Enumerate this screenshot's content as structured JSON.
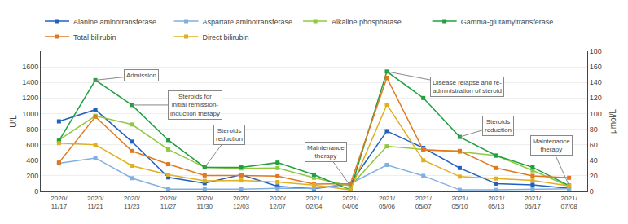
{
  "chart_data": {
    "type": "line",
    "categories": [
      "2020/\n11/17",
      "2020/\n11/21",
      "2020/\n11/23",
      "2020/\n11/27",
      "2020/\n11/30",
      "2020/\n12/03",
      "2020/\n12/07",
      "2021/\n02/04",
      "2021/\n04/06",
      "2021/\n05/06",
      "2021/\n05/07",
      "2021/\n05/10",
      "2021/\n05/13",
      "2021/\n05/17",
      "2021/\n07/08"
    ],
    "series": [
      {
        "name": "Alanine aminotransferase",
        "color": "#2060c0",
        "values": [
          900,
          1050,
          640,
          180,
          105,
          215,
          65,
          35,
          100,
          775,
          560,
          300,
          100,
          85,
          40
        ]
      },
      {
        "name": "Aspartate aminotransferase",
        "color": "#80b0e0",
        "values": [
          360,
          430,
          170,
          30,
          30,
          30,
          40,
          40,
          100,
          340,
          200,
          20,
          20,
          30,
          35
        ]
      },
      {
        "name": "Alkaline phosphatase",
        "color": "#90c840",
        "values": [
          660,
          970,
          860,
          540,
          310,
          295,
          300,
          175,
          70,
          580,
          540,
          510,
          460,
          270,
          65
        ]
      },
      {
        "name": "Gamma-glutamyltransferase",
        "color": "#20a040",
        "values": [
          650,
          1430,
          1110,
          660,
          310,
          310,
          370,
          215,
          20,
          1540,
          1200,
          700,
          460,
          310,
          75
        ]
      },
      {
        "name": "Total bilirubin",
        "color": "#e07820",
        "axis": "y2",
        "values": [
          37,
          96,
          52,
          35,
          20.5,
          20.5,
          19.5,
          9.5,
          10,
          146,
          53,
          52,
          30,
          20,
          17.5
        ]
      },
      {
        "name": "Direct bilirubin",
        "color": "#e0b020",
        "axis": "y2",
        "values": [
          62,
          60,
          33,
          21.5,
          13.5,
          14,
          12,
          8,
          2,
          111.5,
          40,
          19,
          16.5,
          14,
          7
        ]
      }
    ],
    "ylabel": "U/L",
    "y2label": "μmol/L",
    "ylim": [
      0,
      1800
    ],
    "yticks": [
      0,
      200,
      400,
      600,
      800,
      1000,
      1200,
      1400,
      1600
    ],
    "y2lim": [
      0,
      180
    ],
    "y2ticks": [
      0,
      20,
      40,
      60,
      80,
      100,
      120,
      140,
      160,
      180
    ],
    "marker": "square",
    "grid": true,
    "legend": "top",
    "annotations": [
      {
        "text": "Admission",
        "x": "2020/\n11/21",
        "y": 1430
      },
      {
        "text": "Steroids for\ninitial remission-\ninduction therapy",
        "x": "2020/\n11/23",
        "y": 1110
      },
      {
        "text": "Steroids\nreduction",
        "x": "2020/\n11/30",
        "y": 310
      },
      {
        "text": "Maintenance\ntherapy",
        "x": "2021/\n04/06",
        "y": 70
      },
      {
        "text": "Disease relapse and re-\nadministration of steroid",
        "x": "2021/\n05/06",
        "y": 1540
      },
      {
        "text": "Steroids\nreduction",
        "x": "2021/\n05/10",
        "y": 700
      },
      {
        "text": "Maintenance\ntherapy",
        "x": "2021/\n07/08",
        "y": 75
      }
    ]
  }
}
